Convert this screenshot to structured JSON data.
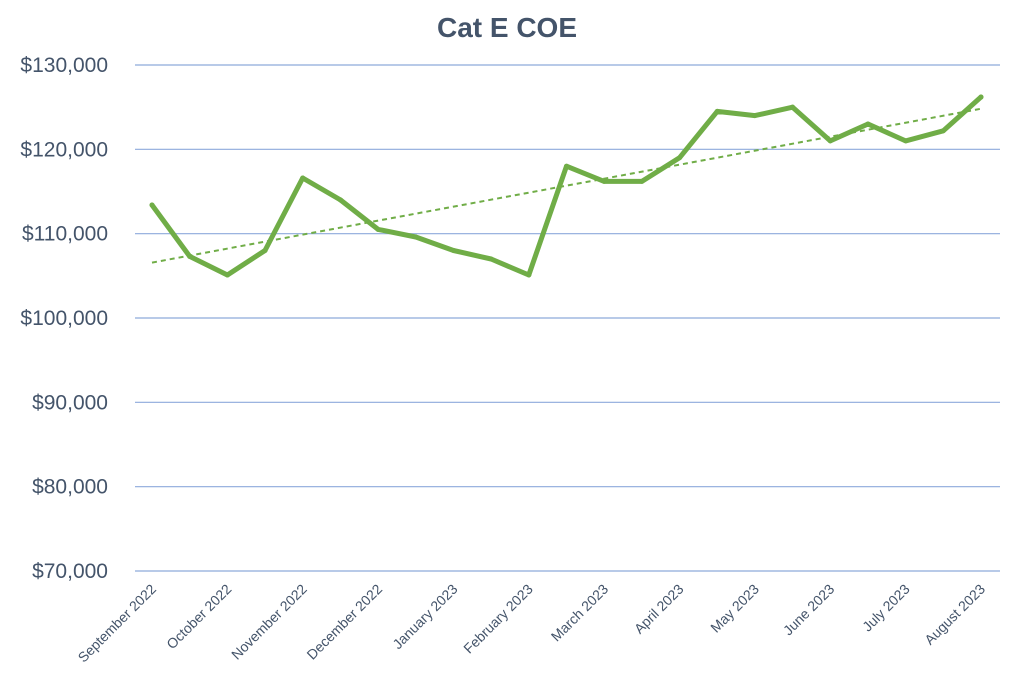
{
  "chart_data": {
    "type": "line",
    "title": "Cat E COE",
    "xlabel": "",
    "ylabel": "",
    "ylim": [
      70000,
      130000
    ],
    "yticks": [
      "$70,000",
      "$80,000",
      "$90,000",
      "$100,000",
      "$110,000",
      "$120,000",
      "$130,000"
    ],
    "ytick_values": [
      70000,
      80000,
      90000,
      100000,
      110000,
      120000,
      130000
    ],
    "categories": [
      "September 2022",
      "October 2022",
      "November 2022",
      "December 2022",
      "January 2023",
      "February 2023",
      "March 2023",
      "April 2023",
      "May 2023",
      "June 2023",
      "July 2023",
      "August 2023"
    ],
    "x": [
      "Sep 2022 (1)",
      "Sep 2022 (2)",
      "Oct 2022 (1)",
      "Oct 2022 (2)",
      "Nov 2022 (1)",
      "Nov 2022 (2)",
      "Dec 2022 (1)",
      "Dec 2022 (2)",
      "Jan 2023 (1)",
      "Jan 2023 (2)",
      "Feb 2023 (1)",
      "Feb 2023 (2)",
      "Mar 2023 (1)",
      "Mar 2023 (2)",
      "Apr 2023 (1)",
      "Apr 2023 (2)",
      "May 2023 (1)",
      "May 2023 (2)",
      "Jun 2023 (1)",
      "Jun 2023 (2)",
      "Jul 2023 (1)",
      "Jul 2023 (2)",
      "Aug 2023 (1)"
    ],
    "series": [
      {
        "color": "#70ad47",
        "values": [
          113400,
          107300,
          105100,
          108000,
          116600,
          114000,
          110500,
          109600,
          108000,
          107000,
          105100,
          118000,
          116200,
          116200,
          119000,
          124500,
          124000,
          125000,
          121000,
          123000,
          121000,
          122200,
          126200
        ]
      }
    ],
    "trendline": {
      "type": "linear",
      "style": "dashed",
      "color": "#70ad47"
    },
    "grid": true,
    "gridline_color": "#8eaadb",
    "legend": "none"
  }
}
